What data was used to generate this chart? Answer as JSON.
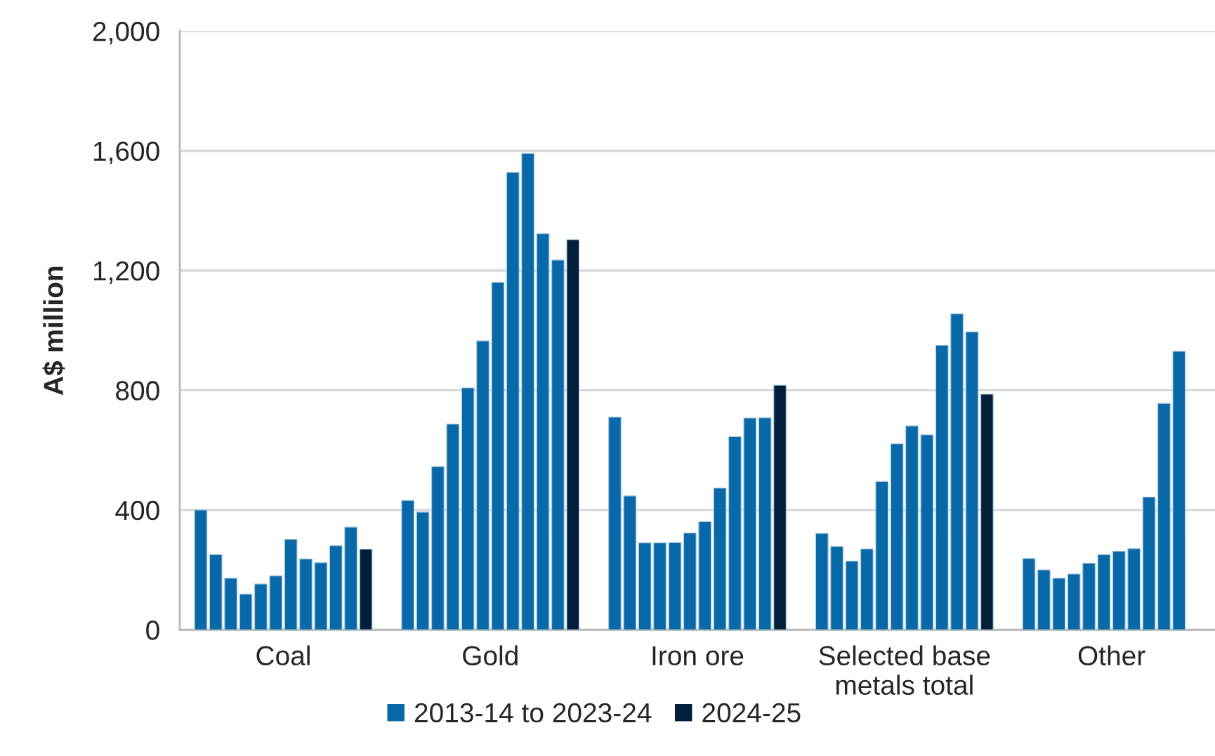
{
  "chart_data": {
    "type": "bar",
    "ylabel": "A$ million",
    "categories": [
      "Coal",
      "Gold",
      "Iron ore",
      "Selected base\nmetals total",
      "Other"
    ],
    "series": [
      {
        "name": "2013-14 to 2023-24",
        "color": "#0868a8",
        "values": [
          400,
          432,
          710,
          322,
          238
        ]
      },
      {
        "color": "#0868a8",
        "values": [
          251,
          393,
          447,
          278,
          200
        ]
      },
      {
        "color": "#0868a8",
        "values": [
          172,
          545,
          290,
          229,
          172
        ]
      },
      {
        "color": "#0868a8",
        "values": [
          119,
          687,
          290,
          270,
          186
        ]
      },
      {
        "color": "#0868a8",
        "values": [
          153,
          808,
          291,
          495,
          222
        ]
      },
      {
        "color": "#0868a8",
        "values": [
          180,
          965,
          323,
          621,
          251
        ]
      },
      {
        "color": "#0868a8",
        "values": [
          302,
          1160,
          361,
          681,
          262
        ]
      },
      {
        "color": "#0868a8",
        "values": [
          236,
          1528,
          473,
          651,
          271
        ]
      },
      {
        "color": "#0868a8",
        "values": [
          224,
          1591,
          645,
          950,
          443
        ]
      },
      {
        "color": "#0868a8",
        "values": [
          281,
          1323,
          707,
          1055,
          756
        ]
      },
      {
        "color": "#0868a8",
        "values": [
          343,
          1235,
          708,
          995,
          930
        ]
      },
      {
        "name": "2024-25",
        "color": "#011f3b",
        "values": [
          269,
          1303,
          817,
          787,
          null
        ]
      }
    ],
    "ylim": [
      0,
      2000
    ],
    "yticks": [
      0,
      400,
      800,
      {
        "value": 1200,
        "label": "1,200"
      },
      {
        "value": 1600,
        "label": "1,600"
      },
      {
        "value": 2000,
        "label": "2,000"
      }
    ],
    "grid": "y",
    "legend": "bottom"
  }
}
